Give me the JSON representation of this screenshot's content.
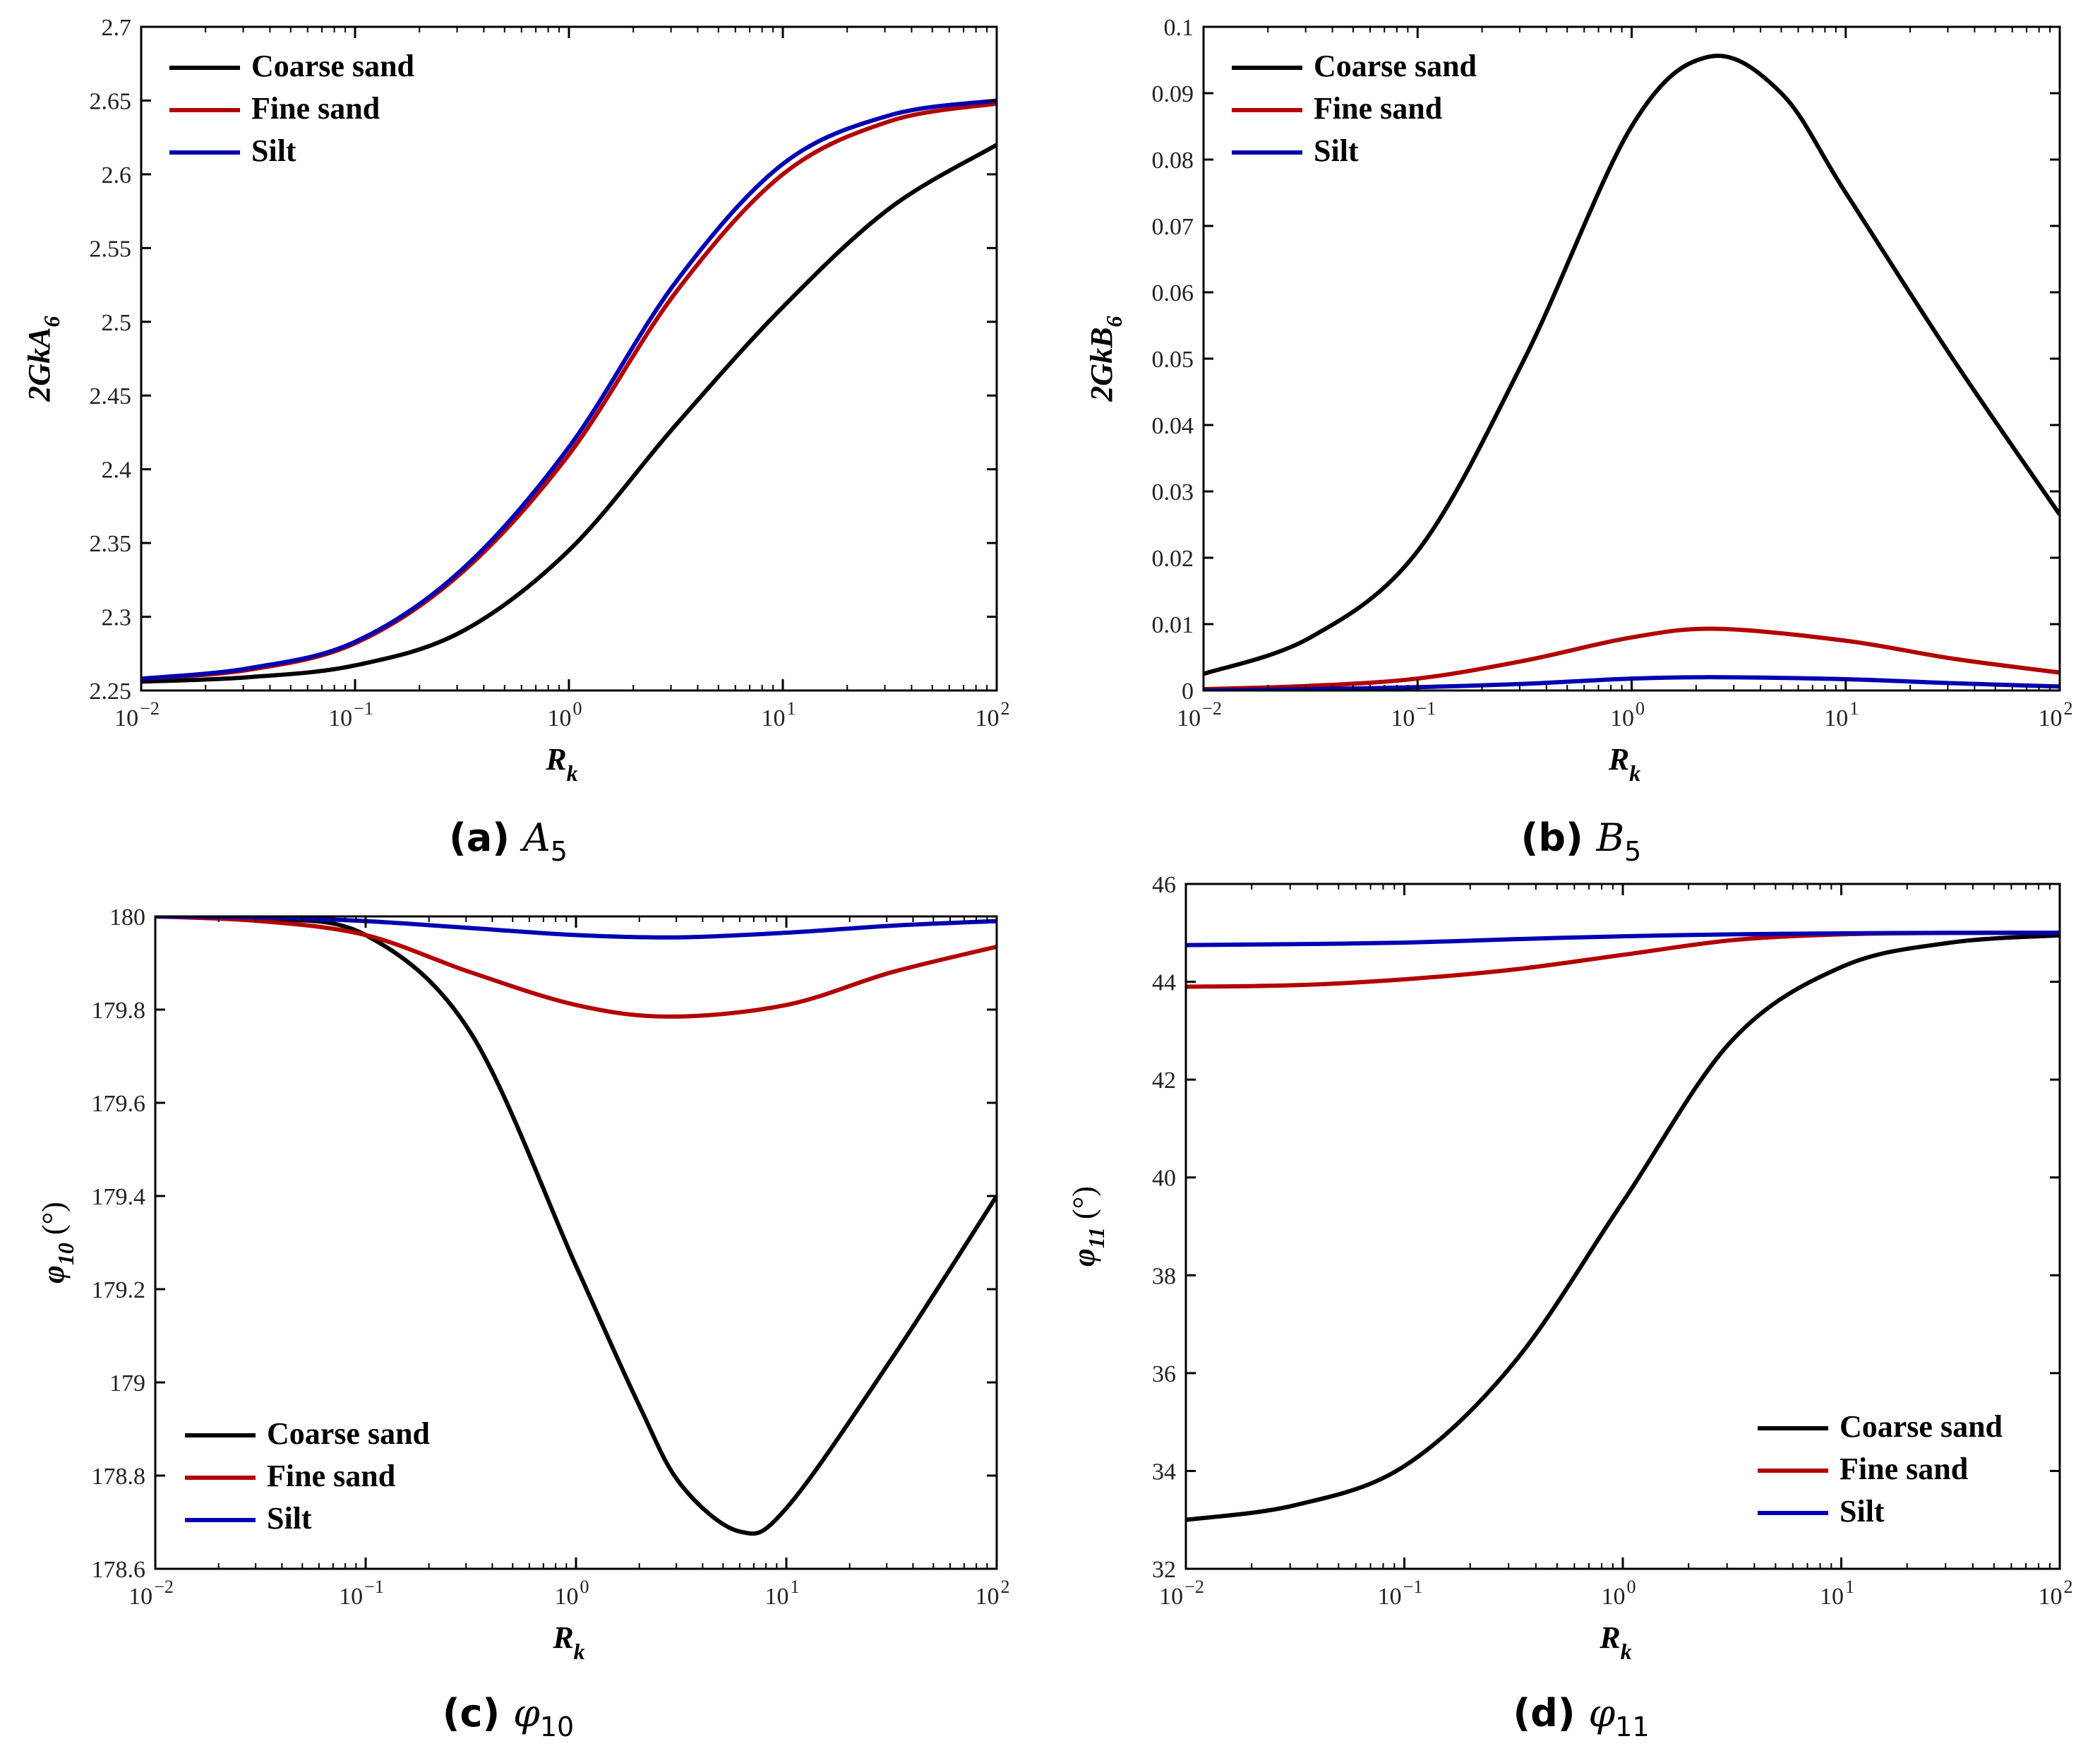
{
  "colors": {
    "coarse_sand": "#000000",
    "fine_sand": "#b30000",
    "silt": "#0000b3"
  },
  "chart_data": [
    {
      "id": "a",
      "type": "line",
      "caption_letter": "(a)",
      "caption_symbol": "A",
      "caption_subscript": "5",
      "xlabel": "R",
      "xlabel_sub": "k",
      "ylabel": "2GkA",
      "ylabel_sub": "6",
      "xscale": "log",
      "xlim": [
        0.01,
        100
      ],
      "ylim": [
        2.25,
        2.7
      ],
      "yticks": [
        2.25,
        2.3,
        2.35,
        2.4,
        2.45,
        2.5,
        2.55,
        2.6,
        2.65,
        2.7
      ],
      "ytick_labels": [
        "2.25",
        "2.3",
        "2.35",
        "2.4",
        "2.45",
        "2.5",
        "2.55",
        "2.6",
        "2.65",
        "2.7"
      ],
      "legend_position": "top-left",
      "series": [
        {
          "name": "Coarse sand",
          "key": "coarse_sand",
          "x": [
            0.01,
            0.0316,
            0.1,
            0.316,
            1,
            3.16,
            10,
            31.6,
            100
          ],
          "values": [
            2.256,
            2.259,
            2.267,
            2.29,
            2.345,
            2.43,
            2.51,
            2.577,
            2.62
          ]
        },
        {
          "name": "Fine sand",
          "key": "fine_sand",
          "x": [
            0.01,
            0.0316,
            0.1,
            0.316,
            1,
            3.16,
            10,
            31.6,
            100
          ],
          "values": [
            2.258,
            2.264,
            2.282,
            2.33,
            2.41,
            2.52,
            2.6,
            2.636,
            2.648
          ]
        },
        {
          "name": "Silt",
          "key": "silt",
          "x": [
            0.01,
            0.0316,
            0.1,
            0.316,
            1,
            3.16,
            10,
            31.6,
            100
          ],
          "values": [
            2.258,
            2.265,
            2.283,
            2.332,
            2.415,
            2.527,
            2.607,
            2.64,
            2.65
          ]
        }
      ]
    },
    {
      "id": "b",
      "type": "line",
      "caption_letter": "(b)",
      "caption_symbol": "B",
      "caption_subscript": "5",
      "xlabel": "R",
      "xlabel_sub": "k",
      "ylabel": "2GkB",
      "ylabel_sub": "6",
      "xscale": "log",
      "xlim": [
        0.01,
        100
      ],
      "ylim": [
        0,
        0.1
      ],
      "yticks": [
        0,
        0.01,
        0.02,
        0.03,
        0.04,
        0.05,
        0.06,
        0.07,
        0.08,
        0.09,
        0.1
      ],
      "ytick_labels": [
        "0",
        "0.01",
        "0.02",
        "0.03",
        "0.04",
        "0.05",
        "0.06",
        "0.07",
        "0.08",
        "0.09",
        "0.1"
      ],
      "legend_position": "top-left",
      "series": [
        {
          "name": "Coarse sand",
          "key": "coarse_sand",
          "x": [
            0.01,
            0.0316,
            0.1,
            0.316,
            1,
            2.3,
            5,
            10,
            31.6,
            100
          ],
          "values": [
            0.0025,
            0.008,
            0.021,
            0.05,
            0.085,
            0.0955,
            0.09,
            0.075,
            0.05,
            0.0265
          ]
        },
        {
          "name": "Fine sand",
          "key": "fine_sand",
          "x": [
            0.01,
            0.0316,
            0.1,
            0.316,
            1,
            2.5,
            10,
            31.6,
            100
          ],
          "values": [
            0.0002,
            0.0007,
            0.0018,
            0.0045,
            0.008,
            0.0093,
            0.0075,
            0.0048,
            0.0027
          ]
        },
        {
          "name": "Silt",
          "key": "silt",
          "x": [
            0.01,
            0.0316,
            0.1,
            0.316,
            1,
            2.5,
            10,
            31.6,
            100
          ],
          "values": [
            0.0,
            0.0002,
            0.0005,
            0.001,
            0.0018,
            0.002,
            0.0017,
            0.0011,
            0.0006
          ]
        }
      ]
    },
    {
      "id": "c",
      "type": "line",
      "caption_letter": "(c)",
      "caption_symbol": "φ",
      "caption_subscript": "10",
      "xlabel": "R",
      "xlabel_sub": "k",
      "ylabel": "φ",
      "ylabel_sub": "10",
      "ylabel_unit": " (°)",
      "xscale": "log",
      "xlim": [
        0.01,
        100
      ],
      "ylim": [
        178.6,
        180
      ],
      "yticks": [
        178.6,
        178.8,
        179,
        179.2,
        179.4,
        179.6,
        179.8,
        180
      ],
      "ytick_labels": [
        "178.6",
        "178.8",
        "179",
        "179.2",
        "179.4",
        "179.6",
        "179.8",
        "180"
      ],
      "legend_position": "bottom-left",
      "series": [
        {
          "name": "Coarse sand",
          "key": "coarse_sand",
          "x": [
            0.01,
            0.0316,
            0.1,
            0.316,
            1,
            2,
            3.16,
            6,
            10,
            31.6,
            100
          ],
          "values": [
            180.0,
            179.995,
            179.96,
            179.75,
            179.25,
            178.95,
            178.78,
            178.68,
            178.73,
            179.05,
            179.4
          ]
        },
        {
          "name": "Fine sand",
          "key": "fine_sand",
          "x": [
            0.01,
            0.0316,
            0.1,
            0.316,
            1,
            2.8,
            10,
            31.6,
            100
          ],
          "values": [
            180.0,
            179.99,
            179.96,
            179.88,
            179.81,
            179.785,
            179.81,
            179.88,
            179.935
          ]
        },
        {
          "name": "Silt",
          "key": "silt",
          "x": [
            0.01,
            0.0316,
            0.1,
            0.316,
            1,
            3,
            10,
            31.6,
            100
          ],
          "values": [
            180.0,
            179.998,
            179.99,
            179.975,
            179.96,
            179.955,
            179.965,
            179.98,
            179.99
          ]
        }
      ]
    },
    {
      "id": "d",
      "type": "line",
      "caption_letter": "(d)",
      "caption_symbol": "φ",
      "caption_subscript": "11",
      "xlabel": "R",
      "xlabel_sub": "k",
      "ylabel": "φ",
      "ylabel_sub": "11",
      "ylabel_unit": " (°)",
      "xscale": "log",
      "xlim": [
        0.01,
        100
      ],
      "ylim": [
        32,
        46
      ],
      "yticks": [
        32,
        34,
        36,
        38,
        40,
        42,
        44,
        46
      ],
      "ytick_labels": [
        "32",
        "34",
        "36",
        "38",
        "40",
        "42",
        "44",
        "46"
      ],
      "legend_position": "bottom-right",
      "series": [
        {
          "name": "Coarse sand",
          "key": "coarse_sand",
          "x": [
            0.01,
            0.0316,
            0.1,
            0.316,
            1,
            3.16,
            10,
            31.6,
            100
          ],
          "values": [
            33.0,
            33.3,
            34.1,
            36.2,
            39.5,
            42.8,
            44.3,
            44.8,
            44.95
          ]
        },
        {
          "name": "Fine sand",
          "key": "fine_sand",
          "x": [
            0.01,
            0.0316,
            0.1,
            0.316,
            1,
            3.16,
            10,
            31.6,
            100
          ],
          "values": [
            43.9,
            43.93,
            44.05,
            44.25,
            44.55,
            44.85,
            44.97,
            45.0,
            45.0
          ]
        },
        {
          "name": "Silt",
          "key": "silt",
          "x": [
            0.01,
            0.0316,
            0.1,
            0.316,
            1,
            3.16,
            10,
            31.6,
            100
          ],
          "values": [
            44.75,
            44.77,
            44.8,
            44.87,
            44.93,
            44.97,
            44.99,
            45.0,
            45.0
          ]
        }
      ]
    }
  ]
}
